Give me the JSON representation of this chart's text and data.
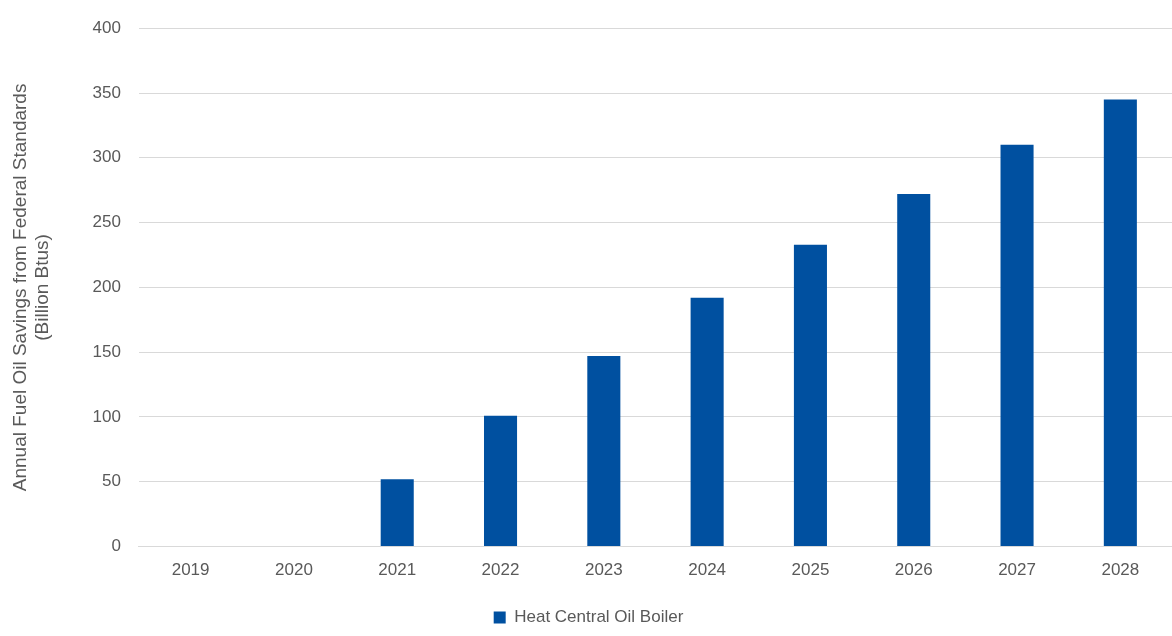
{
  "chart_data": {
    "type": "bar",
    "ylabel": "Annual Fuel Oil Savings from Federal Standards\n(Billion Btus)",
    "categories": [
      "2019",
      "2020",
      "2021",
      "2022",
      "2023",
      "2024",
      "2025",
      "2026",
      "2027",
      "2028"
    ],
    "series": [
      {
        "name": "Heat Central Oil Boiler",
        "color": "#0050a0",
        "values": [
          0,
          0,
          52,
          101,
          147,
          192,
          233,
          272,
          310,
          345
        ]
      }
    ],
    "ylim": [
      0,
      400
    ],
    "yticks": [
      0,
      50,
      100,
      150,
      200,
      250,
      300,
      350,
      400
    ],
    "grid": "y",
    "legend": "bottom"
  }
}
